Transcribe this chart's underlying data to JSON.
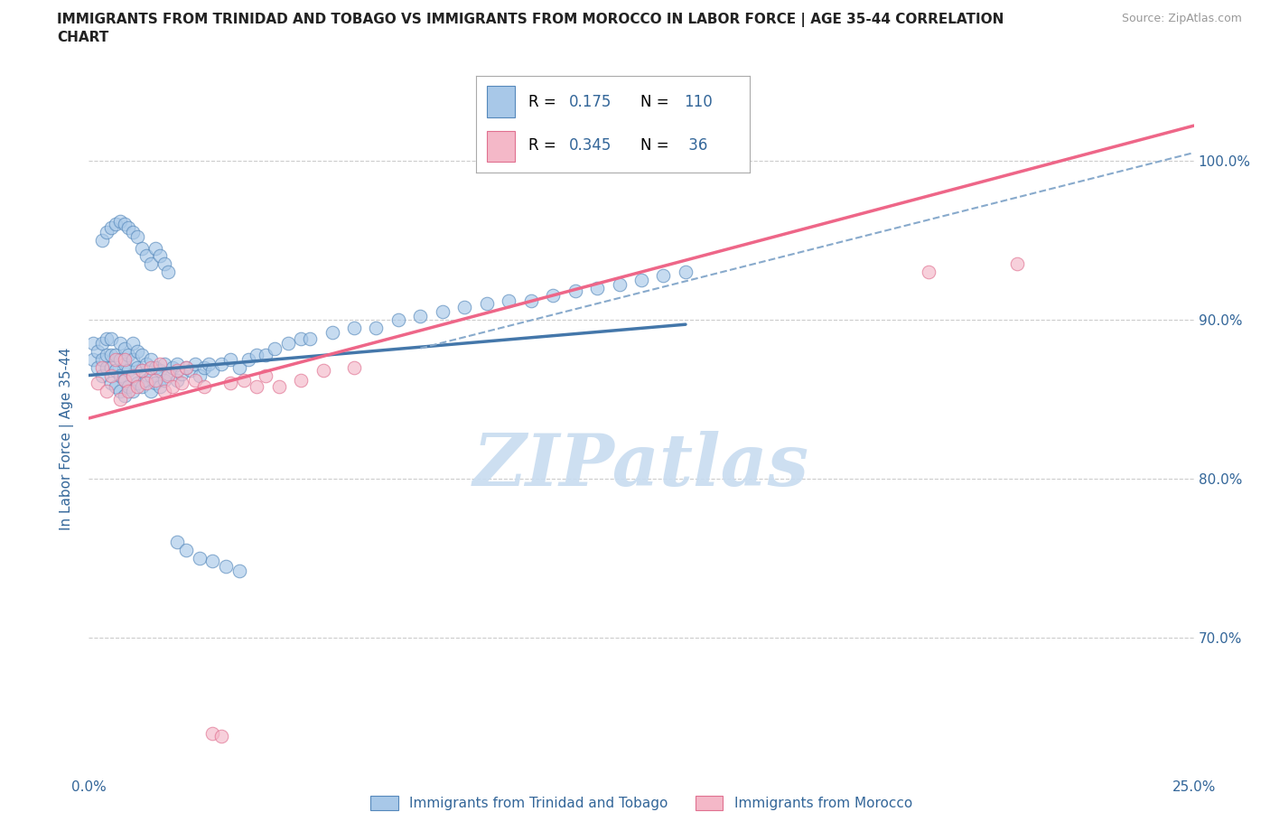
{
  "title_line1": "IMMIGRANTS FROM TRINIDAD AND TOBAGO VS IMMIGRANTS FROM MOROCCO IN LABOR FORCE | AGE 35-44 CORRELATION",
  "title_line2": "CHART",
  "source_text": "Source: ZipAtlas.com",
  "ylabel": "In Labor Force | Age 35-44",
  "xlim": [
    0.0,
    0.25
  ],
  "ylim": [
    0.615,
    1.035
  ],
  "x_tick_labels": [
    "0.0%",
    "25.0%"
  ],
  "x_ticks": [
    0.0,
    0.25
  ],
  "y_ticks": [
    0.7,
    0.8,
    0.9,
    1.0
  ],
  "y_tick_labels": [
    "70.0%",
    "80.0%",
    "90.0%",
    "100.0%"
  ],
  "color_blue": "#A8C8E8",
  "color_pink": "#F4B8C8",
  "edge_blue": "#5588BB",
  "edge_pink": "#E07090",
  "line_blue_color": "#4477AA",
  "line_pink_color": "#EE6688",
  "dash_color": "#88AACC",
  "watermark": "ZIPatlas",
  "watermark_color": "#C8DCF0",
  "gridline_color": "#CCCCCC",
  "title_color": "#222222",
  "ylabel_color": "#336699",
  "tick_color": "#336699",
  "legend_label_color": "#336699",
  "legend_r_color": "#222222",
  "tt_x": [
    0.001,
    0.001,
    0.002,
    0.002,
    0.003,
    0.003,
    0.003,
    0.004,
    0.004,
    0.004,
    0.005,
    0.005,
    0.005,
    0.005,
    0.006,
    0.006,
    0.006,
    0.007,
    0.007,
    0.007,
    0.007,
    0.008,
    0.008,
    0.008,
    0.008,
    0.009,
    0.009,
    0.009,
    0.01,
    0.01,
    0.01,
    0.01,
    0.011,
    0.011,
    0.011,
    0.012,
    0.012,
    0.012,
    0.013,
    0.013,
    0.014,
    0.014,
    0.014,
    0.015,
    0.015,
    0.016,
    0.016,
    0.017,
    0.017,
    0.018,
    0.019,
    0.02,
    0.02,
    0.021,
    0.022,
    0.023,
    0.024,
    0.025,
    0.026,
    0.027,
    0.028,
    0.03,
    0.032,
    0.034,
    0.036,
    0.038,
    0.04,
    0.042,
    0.045,
    0.048,
    0.05,
    0.055,
    0.06,
    0.065,
    0.07,
    0.075,
    0.08,
    0.085,
    0.09,
    0.095,
    0.1,
    0.105,
    0.11,
    0.115,
    0.12,
    0.125,
    0.13,
    0.135,
    0.003,
    0.004,
    0.005,
    0.006,
    0.007,
    0.008,
    0.009,
    0.01,
    0.011,
    0.012,
    0.013,
    0.014,
    0.015,
    0.016,
    0.017,
    0.018,
    0.02,
    0.022,
    0.025,
    0.028,
    0.031,
    0.034
  ],
  "tt_y": [
    0.875,
    0.885,
    0.87,
    0.88,
    0.865,
    0.875,
    0.885,
    0.87,
    0.878,
    0.888,
    0.86,
    0.87,
    0.878,
    0.888,
    0.858,
    0.868,
    0.878,
    0.855,
    0.865,
    0.875,
    0.885,
    0.852,
    0.862,
    0.872,
    0.882,
    0.858,
    0.868,
    0.878,
    0.855,
    0.865,
    0.875,
    0.885,
    0.86,
    0.87,
    0.88,
    0.858,
    0.868,
    0.878,
    0.862,
    0.872,
    0.855,
    0.865,
    0.875,
    0.86,
    0.87,
    0.858,
    0.868,
    0.862,
    0.872,
    0.866,
    0.87,
    0.862,
    0.872,
    0.866,
    0.87,
    0.868,
    0.872,
    0.865,
    0.87,
    0.872,
    0.868,
    0.872,
    0.875,
    0.87,
    0.875,
    0.878,
    0.878,
    0.882,
    0.885,
    0.888,
    0.888,
    0.892,
    0.895,
    0.895,
    0.9,
    0.902,
    0.905,
    0.908,
    0.91,
    0.912,
    0.912,
    0.915,
    0.918,
    0.92,
    0.922,
    0.925,
    0.928,
    0.93,
    0.95,
    0.955,
    0.958,
    0.96,
    0.962,
    0.96,
    0.958,
    0.955,
    0.952,
    0.945,
    0.94,
    0.935,
    0.945,
    0.94,
    0.935,
    0.93,
    0.76,
    0.755,
    0.75,
    0.748,
    0.745,
    0.742
  ],
  "mo_x": [
    0.002,
    0.003,
    0.004,
    0.005,
    0.006,
    0.007,
    0.008,
    0.008,
    0.009,
    0.01,
    0.011,
    0.012,
    0.013,
    0.014,
    0.015,
    0.016,
    0.017,
    0.018,
    0.019,
    0.02,
    0.021,
    0.022,
    0.024,
    0.026,
    0.028,
    0.03,
    0.032,
    0.035,
    0.038,
    0.04,
    0.043,
    0.048,
    0.053,
    0.06,
    0.19,
    0.21
  ],
  "mo_y": [
    0.86,
    0.87,
    0.855,
    0.865,
    0.875,
    0.85,
    0.862,
    0.875,
    0.855,
    0.865,
    0.858,
    0.868,
    0.86,
    0.87,
    0.862,
    0.872,
    0.855,
    0.865,
    0.858,
    0.868,
    0.86,
    0.87,
    0.862,
    0.858,
    0.64,
    0.638,
    0.86,
    0.862,
    0.858,
    0.865,
    0.858,
    0.862,
    0.868,
    0.87,
    0.93,
    0.935
  ],
  "tt_line_x0": 0.0,
  "tt_line_x1": 0.135,
  "tt_line_y0": 0.865,
  "tt_line_y1": 0.897,
  "mo_line_x0": 0.0,
  "mo_line_x1": 0.25,
  "mo_line_y0": 0.838,
  "mo_line_y1": 1.022,
  "dash_line_x0": 0.075,
  "dash_line_x1": 0.25,
  "dash_line_y0": 0.882,
  "dash_line_y1": 1.005
}
